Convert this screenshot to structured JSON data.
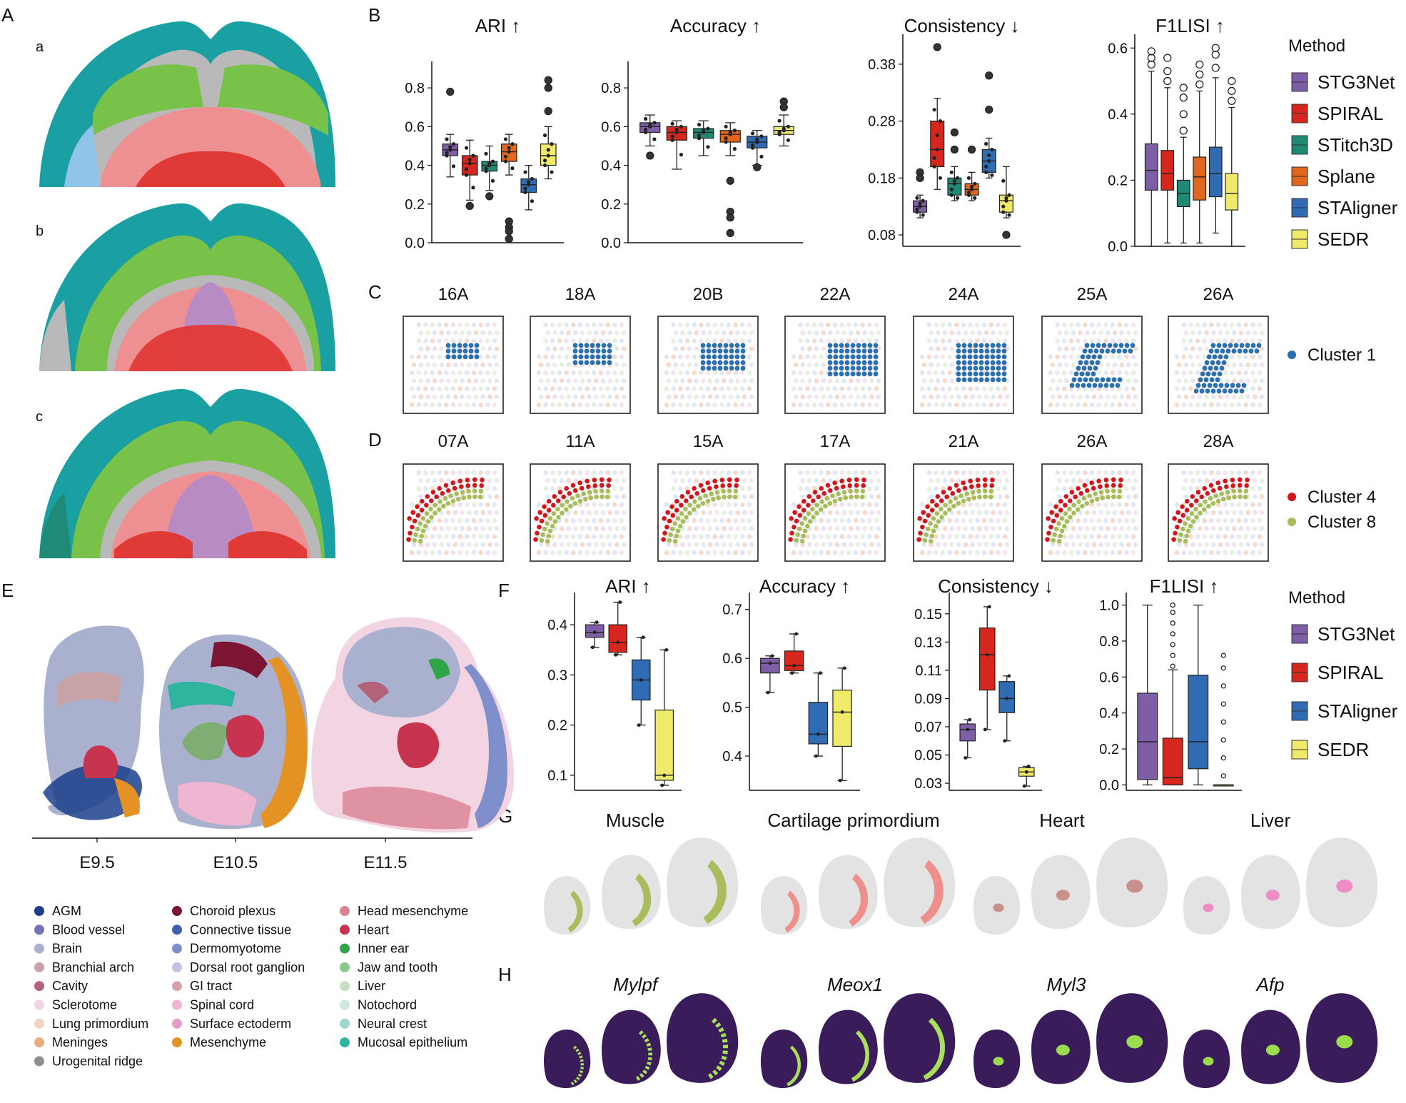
{
  "panel_letters": {
    "A": "A",
    "B": "B",
    "C": "C",
    "D": "D",
    "E": "E",
    "F": "F",
    "G": "G",
    "H": "H"
  },
  "brain_sublabels": [
    "a",
    "b",
    "c"
  ],
  "colors": {
    "STG3Net": "#7e5ea7",
    "SPIRAL": "#d7261e",
    "STitch3D": "#1f8a74",
    "Splane": "#e2661c",
    "STAligner": "#2f6cb4",
    "SEDR": "#f0ea6a",
    "cluster1": "#2c6fae",
    "cluster4": "#d0181c",
    "cluster8": "#a7bd5a",
    "cortex_teal": "#1aa0a2",
    "cortex_dark": "#1f8a78",
    "green": "#79c24a",
    "pink": "#ee8f92",
    "red": "#e03a37",
    "purple": "#b88bc2",
    "grey": "#b9b9b9",
    "blue": "#90c4e8"
  },
  "legend_B": {
    "title": "Method",
    "items": [
      "STG3Net",
      "SPIRAL",
      "STitch3D",
      "Splane",
      "STAligner",
      "SEDR"
    ]
  },
  "legend_F": {
    "title": "Method",
    "items": [
      "STG3Net",
      "SPIRAL",
      "STAligner",
      "SEDR"
    ]
  },
  "chart_data": [
    {
      "id": "B-ARI",
      "type": "box",
      "title": "ARI ↑",
      "ylim": [
        0,
        0.9
      ],
      "yticks": [
        "0.0",
        "0.2",
        "0.4",
        "0.6",
        "0.8"
      ],
      "tickvals": [
        0,
        0.2,
        0.4,
        0.6,
        0.8
      ],
      "series": [
        {
          "name": "STG3Net",
          "q1": 0.45,
          "median": 0.48,
          "q3": 0.51,
          "whislo": 0.34,
          "whishi": 0.56,
          "outliers": [
            0.78
          ]
        },
        {
          "name": "SPIRAL",
          "q1": 0.35,
          "median": 0.41,
          "q3": 0.45,
          "whislo": 0.22,
          "whishi": 0.53,
          "outliers": [
            0.19
          ]
        },
        {
          "name": "STitch3D",
          "q1": 0.37,
          "median": 0.4,
          "q3": 0.42,
          "whislo": 0.27,
          "whishi": 0.5,
          "outliers": [
            0.24
          ]
        },
        {
          "name": "Splane",
          "q1": 0.42,
          "median": 0.47,
          "q3": 0.51,
          "whislo": 0.35,
          "whishi": 0.56,
          "outliers": [
            0.11,
            0.08,
            0.06,
            0.02
          ]
        },
        {
          "name": "STAligner",
          "q1": 0.26,
          "median": 0.3,
          "q3": 0.33,
          "whislo": 0.17,
          "whishi": 0.4,
          "outliers": []
        },
        {
          "name": "SEDR",
          "q1": 0.4,
          "median": 0.45,
          "q3": 0.51,
          "whislo": 0.33,
          "whishi": 0.6,
          "outliers": [
            0.84,
            0.8,
            0.68
          ]
        }
      ]
    },
    {
      "id": "B-Acc",
      "type": "box",
      "title": "Accuracy ↑",
      "ylim": [
        0,
        0.9
      ],
      "yticks": [
        "0.0",
        "0.2",
        "0.4",
        "0.6",
        "0.8"
      ],
      "tickvals": [
        0,
        0.2,
        0.4,
        0.6,
        0.8
      ],
      "series": [
        {
          "name": "STG3Net",
          "q1": 0.57,
          "median": 0.6,
          "q3": 0.62,
          "whislo": 0.5,
          "whishi": 0.66,
          "outliers": [
            0.45
          ]
        },
        {
          "name": "SPIRAL",
          "q1": 0.53,
          "median": 0.57,
          "q3": 0.6,
          "whislo": 0.38,
          "whishi": 0.63,
          "outliers": []
        },
        {
          "name": "STitch3D",
          "q1": 0.54,
          "median": 0.57,
          "q3": 0.59,
          "whislo": 0.45,
          "whishi": 0.63,
          "outliers": []
        },
        {
          "name": "Splane",
          "q1": 0.52,
          "median": 0.56,
          "q3": 0.58,
          "whislo": 0.45,
          "whishi": 0.62,
          "outliers": [
            0.32,
            0.16,
            0.13,
            0.05
          ]
        },
        {
          "name": "STAligner",
          "q1": 0.49,
          "median": 0.52,
          "q3": 0.55,
          "whislo": 0.4,
          "whishi": 0.58,
          "outliers": [
            0.39
          ]
        },
        {
          "name": "SEDR",
          "q1": 0.56,
          "median": 0.58,
          "q3": 0.6,
          "whislo": 0.5,
          "whishi": 0.66,
          "outliers": [
            0.73,
            0.7
          ]
        }
      ]
    },
    {
      "id": "B-Cons",
      "type": "box",
      "title": "Consistency ↓",
      "ylim": [
        0.06,
        0.42
      ],
      "yticks": [
        "0.08",
        "0.18",
        "0.28",
        "0.38"
      ],
      "tickvals": [
        0.08,
        0.18,
        0.28,
        0.38
      ],
      "series": [
        {
          "name": "STG3Net",
          "q1": 0.12,
          "median": 0.13,
          "q3": 0.14,
          "whislo": 0.11,
          "whishi": 0.15,
          "outliers": [
            0.19,
            0.18
          ]
        },
        {
          "name": "SPIRAL",
          "q1": 0.2,
          "median": 0.23,
          "q3": 0.28,
          "whislo": 0.16,
          "whishi": 0.32,
          "outliers": [
            0.41
          ]
        },
        {
          "name": "STitch3D",
          "q1": 0.15,
          "median": 0.17,
          "q3": 0.18,
          "whislo": 0.14,
          "whishi": 0.2,
          "outliers": [
            0.26,
            0.23
          ]
        },
        {
          "name": "Splane",
          "q1": 0.15,
          "median": 0.16,
          "q3": 0.17,
          "whislo": 0.14,
          "whishi": 0.19,
          "outliers": [
            0.23
          ]
        },
        {
          "name": "STAligner",
          "q1": 0.19,
          "median": 0.21,
          "q3": 0.23,
          "whislo": 0.18,
          "whishi": 0.25,
          "outliers": [
            0.36,
            0.3
          ]
        },
        {
          "name": "SEDR",
          "q1": 0.12,
          "median": 0.14,
          "q3": 0.15,
          "whislo": 0.11,
          "whishi": 0.2,
          "outliers": [
            0.08
          ]
        }
      ]
    },
    {
      "id": "B-F1",
      "type": "box",
      "title": "F1LISI ↑",
      "ylim": [
        0,
        0.62
      ],
      "yticks": [
        "0.0",
        "0.2",
        "0.4",
        "0.6"
      ],
      "tickvals": [
        0,
        0.2,
        0.4,
        0.6
      ],
      "series": [
        {
          "name": "STG3Net",
          "q1": 0.17,
          "median": 0.23,
          "q3": 0.31,
          "whislo": 0.0,
          "whishi": 0.53,
          "outliers": [
            0.55,
            0.57,
            0.59
          ]
        },
        {
          "name": "SPIRAL",
          "q1": 0.17,
          "median": 0.22,
          "q3": 0.29,
          "whislo": 0.01,
          "whishi": 0.48,
          "outliers": [
            0.5,
            0.53,
            0.57
          ]
        },
        {
          "name": "STitch3D",
          "q1": 0.12,
          "median": 0.16,
          "q3": 0.2,
          "whislo": 0.01,
          "whishi": 0.33,
          "outliers": [
            0.35,
            0.4,
            0.45,
            0.48
          ]
        },
        {
          "name": "Splane",
          "q1": 0.14,
          "median": 0.21,
          "q3": 0.27,
          "whislo": 0.01,
          "whishi": 0.47,
          "outliers": [
            0.49,
            0.52,
            0.55
          ]
        },
        {
          "name": "STAligner",
          "q1": 0.15,
          "median": 0.22,
          "q3": 0.3,
          "whislo": 0.04,
          "whishi": 0.51,
          "outliers": [
            0.54,
            0.58,
            0.6
          ]
        },
        {
          "name": "SEDR",
          "q1": 0.11,
          "median": 0.16,
          "q3": 0.22,
          "whislo": 0.0,
          "whishi": 0.42,
          "outliers": [
            0.44,
            0.47,
            0.5
          ]
        }
      ]
    },
    {
      "id": "F-ARI",
      "type": "box",
      "title": "ARI ↑",
      "ylim": [
        0.07,
        0.45
      ],
      "yticks": [
        "0.1",
        "0.2",
        "0.3",
        "0.4"
      ],
      "tickvals": [
        0.1,
        0.2,
        0.3,
        0.4
      ],
      "series": [
        {
          "name": "STG3Net",
          "q1": 0.375,
          "median": 0.385,
          "q3": 0.4,
          "whislo": 0.355,
          "whishi": 0.405,
          "outliers": []
        },
        {
          "name": "SPIRAL",
          "q1": 0.345,
          "median": 0.365,
          "q3": 0.4,
          "whislo": 0.34,
          "whishi": 0.445,
          "outliers": []
        },
        {
          "name": "STAligner",
          "q1": 0.25,
          "median": 0.29,
          "q3": 0.33,
          "whislo": 0.2,
          "whishi": 0.375,
          "outliers": []
        },
        {
          "name": "SEDR",
          "q1": 0.09,
          "median": 0.1,
          "q3": 0.23,
          "whislo": 0.08,
          "whishi": 0.35,
          "outliers": []
        }
      ]
    },
    {
      "id": "F-Acc",
      "type": "box",
      "title": "Accuracy ↑",
      "ylim": [
        0.33,
        0.72
      ],
      "yticks": [
        "0.4",
        "0.5",
        "0.6",
        "0.7"
      ],
      "tickvals": [
        0.4,
        0.5,
        0.6,
        0.7
      ],
      "series": [
        {
          "name": "STG3Net",
          "q1": 0.57,
          "median": 0.59,
          "q3": 0.6,
          "whislo": 0.53,
          "whishi": 0.605,
          "outliers": []
        },
        {
          "name": "SPIRAL",
          "q1": 0.575,
          "median": 0.585,
          "q3": 0.615,
          "whislo": 0.57,
          "whishi": 0.65,
          "outliers": []
        },
        {
          "name": "STAligner",
          "q1": 0.425,
          "median": 0.445,
          "q3": 0.51,
          "whislo": 0.4,
          "whishi": 0.57,
          "outliers": []
        },
        {
          "name": "SEDR",
          "q1": 0.42,
          "median": 0.49,
          "q3": 0.535,
          "whislo": 0.35,
          "whishi": 0.58,
          "outliers": []
        }
      ]
    },
    {
      "id": "F-Cons",
      "type": "box",
      "title": "Consistency ↓",
      "ylim": [
        0.025,
        0.16
      ],
      "yticks": [
        "0.03",
        "0.05",
        "0.07",
        "0.09",
        "0.11",
        "0.13",
        "0.15"
      ],
      "tickvals": [
        0.03,
        0.05,
        0.07,
        0.09,
        0.11,
        0.13,
        0.15
      ],
      "series": [
        {
          "name": "STG3Net",
          "q1": 0.06,
          "median": 0.068,
          "q3": 0.072,
          "whislo": 0.048,
          "whishi": 0.075,
          "outliers": []
        },
        {
          "name": "SPIRAL",
          "q1": 0.096,
          "median": 0.121,
          "q3": 0.14,
          "whislo": 0.068,
          "whishi": 0.155,
          "outliers": []
        },
        {
          "name": "STAligner",
          "q1": 0.08,
          "median": 0.09,
          "q3": 0.102,
          "whislo": 0.06,
          "whishi": 0.106,
          "outliers": []
        },
        {
          "name": "SEDR",
          "q1": 0.035,
          "median": 0.038,
          "q3": 0.041,
          "whislo": 0.028,
          "whishi": 0.042,
          "outliers": []
        }
      ]
    },
    {
      "id": "F-F1",
      "type": "box",
      "title": "F1LISI ↑",
      "ylim": [
        -0.03,
        1.03
      ],
      "yticks": [
        "0.0",
        "0.2",
        "0.4",
        "0.6",
        "0.8",
        "1.0"
      ],
      "tickvals": [
        0,
        0.2,
        0.4,
        0.6,
        0.8,
        1.0
      ],
      "series": [
        {
          "name": "STG3Net",
          "q1": 0.03,
          "median": 0.24,
          "q3": 0.51,
          "whislo": 0.0,
          "whishi": 1.0,
          "outliers": []
        },
        {
          "name": "SPIRAL",
          "q1": 0.0,
          "median": 0.04,
          "q3": 0.26,
          "whislo": 0.0,
          "whishi": 0.64,
          "outliers": [
            0.66,
            0.72,
            0.78,
            0.84,
            0.9,
            0.96,
            1.0
          ]
        },
        {
          "name": "STAligner",
          "q1": 0.09,
          "median": 0.24,
          "q3": 0.61,
          "whislo": 0.0,
          "whishi": 1.0,
          "outliers": []
        },
        {
          "name": "SEDR",
          "q1": 0.0,
          "median": 0.0,
          "q3": 0.0,
          "whislo": 0.0,
          "whishi": 0.0,
          "outliers": [
            0.05,
            0.15,
            0.25,
            0.35,
            0.45,
            0.55,
            0.65,
            0.72
          ]
        }
      ]
    }
  ],
  "panel_C": {
    "slices": [
      "16A",
      "18A",
      "20B",
      "22A",
      "24A",
      "25A",
      "26A"
    ],
    "legend": [
      "Cluster 1"
    ]
  },
  "panel_D": {
    "slices": [
      "07A",
      "11A",
      "15A",
      "17A",
      "21A",
      "26A",
      "28A"
    ],
    "legend": [
      "Cluster 4",
      "Cluster 8"
    ]
  },
  "panel_E": {
    "stages": [
      "E9.5",
      "E10.5",
      "E11.5"
    ],
    "legend": [
      {
        "label": "AGM",
        "color": "#1b3f8c"
      },
      {
        "label": "Blood vessel",
        "color": "#7173b4"
      },
      {
        "label": "Brain",
        "color": "#aab1cf"
      },
      {
        "label": "Branchial arch",
        "color": "#c7a2a6"
      },
      {
        "label": "Cavity",
        "color": "#b4617a"
      },
      {
        "label": "Sclerotome",
        "color": "#f2d4e2"
      },
      {
        "label": "Lung primordium",
        "color": "#f1d3c4"
      },
      {
        "label": "Meninges",
        "color": "#ebab7a"
      },
      {
        "label": "Urogenital ridge",
        "color": "#8f8f8f"
      },
      {
        "label": "Choroid plexus",
        "color": "#7b1533"
      },
      {
        "label": "Connective tissue",
        "color": "#3e60b2"
      },
      {
        "label": "Dermomyotome",
        "color": "#7f8fcb"
      },
      {
        "label": "Dorsal root ganglion",
        "color": "#c5c1e3"
      },
      {
        "label": "GI tract",
        "color": "#d8a1a8"
      },
      {
        "label": "Spinal cord",
        "color": "#efb6d2"
      },
      {
        "label": "Surface ectoderm",
        "color": "#e69ccb"
      },
      {
        "label": "Mesenchyme",
        "color": "#e49224"
      },
      {
        "label": "Head mesenchyme",
        "color": "#d98292"
      },
      {
        "label": "Heart",
        "color": "#c8344f"
      },
      {
        "label": "Inner ear",
        "color": "#2ea547"
      },
      {
        "label": "Jaw and tooth",
        "color": "#88c88a"
      },
      {
        "label": "Liver",
        "color": "#c5e0c1"
      },
      {
        "label": "Notochord",
        "color": "#cfe7df"
      },
      {
        "label": "Neural crest",
        "color": "#9fd4cf"
      },
      {
        "label": "Mucosal epithelium",
        "color": "#2fb4a0"
      }
    ]
  },
  "panel_G": {
    "titles": [
      "Muscle",
      "Cartilage primordium",
      "Heart",
      "Liver"
    ],
    "colors": [
      "#a9bd5c",
      "#ef8f8c",
      "#c7908a",
      "#ee8cc4"
    ]
  },
  "panel_H": {
    "genes": [
      "Mylpf",
      "Meox1",
      "Myl3",
      "Afp"
    ]
  }
}
